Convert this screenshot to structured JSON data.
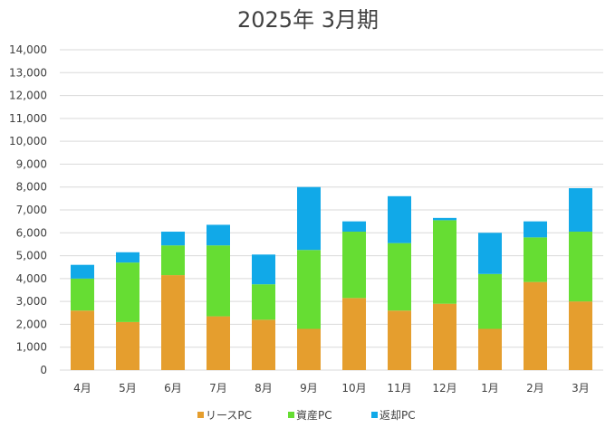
{
  "chart_data": {
    "type": "bar",
    "stacked": true,
    "title": "2025年 3月期",
    "categories": [
      "4月",
      "5月",
      "6月",
      "7月",
      "8月",
      "9月",
      "10月",
      "11月",
      "12月",
      "1月",
      "2月",
      "3月"
    ],
    "series": [
      {
        "name": "リースPC",
        "color": "#E59E2E",
        "values": [
          2600,
          2100,
          4150,
          2350,
          2200,
          1800,
          3150,
          2600,
          2900,
          1800,
          3850,
          3000
        ]
      },
      {
        "name": "資産PC",
        "color": "#66DD33",
        "values": [
          1400,
          2600,
          1300,
          3100,
          1550,
          3450,
          2900,
          2950,
          3650,
          2400,
          1950,
          3050
        ]
      },
      {
        "name": "返却PC",
        "color": "#11A9E8",
        "values": [
          600,
          450,
          600,
          900,
          1300,
          2750,
          450,
          2050,
          100,
          1800,
          700,
          1900
        ]
      }
    ],
    "ylim": [
      0,
      14000
    ],
    "ytick_step": 1000,
    "ytick_labels": [
      "0",
      "1,000",
      "2,000",
      "3,000",
      "4,000",
      "5,000",
      "6,000",
      "7,000",
      "8,000",
      "9,000",
      "10,000",
      "11,000",
      "12,000",
      "13,000",
      "14,000"
    ],
    "grid": true,
    "legend_position": "bottom"
  }
}
